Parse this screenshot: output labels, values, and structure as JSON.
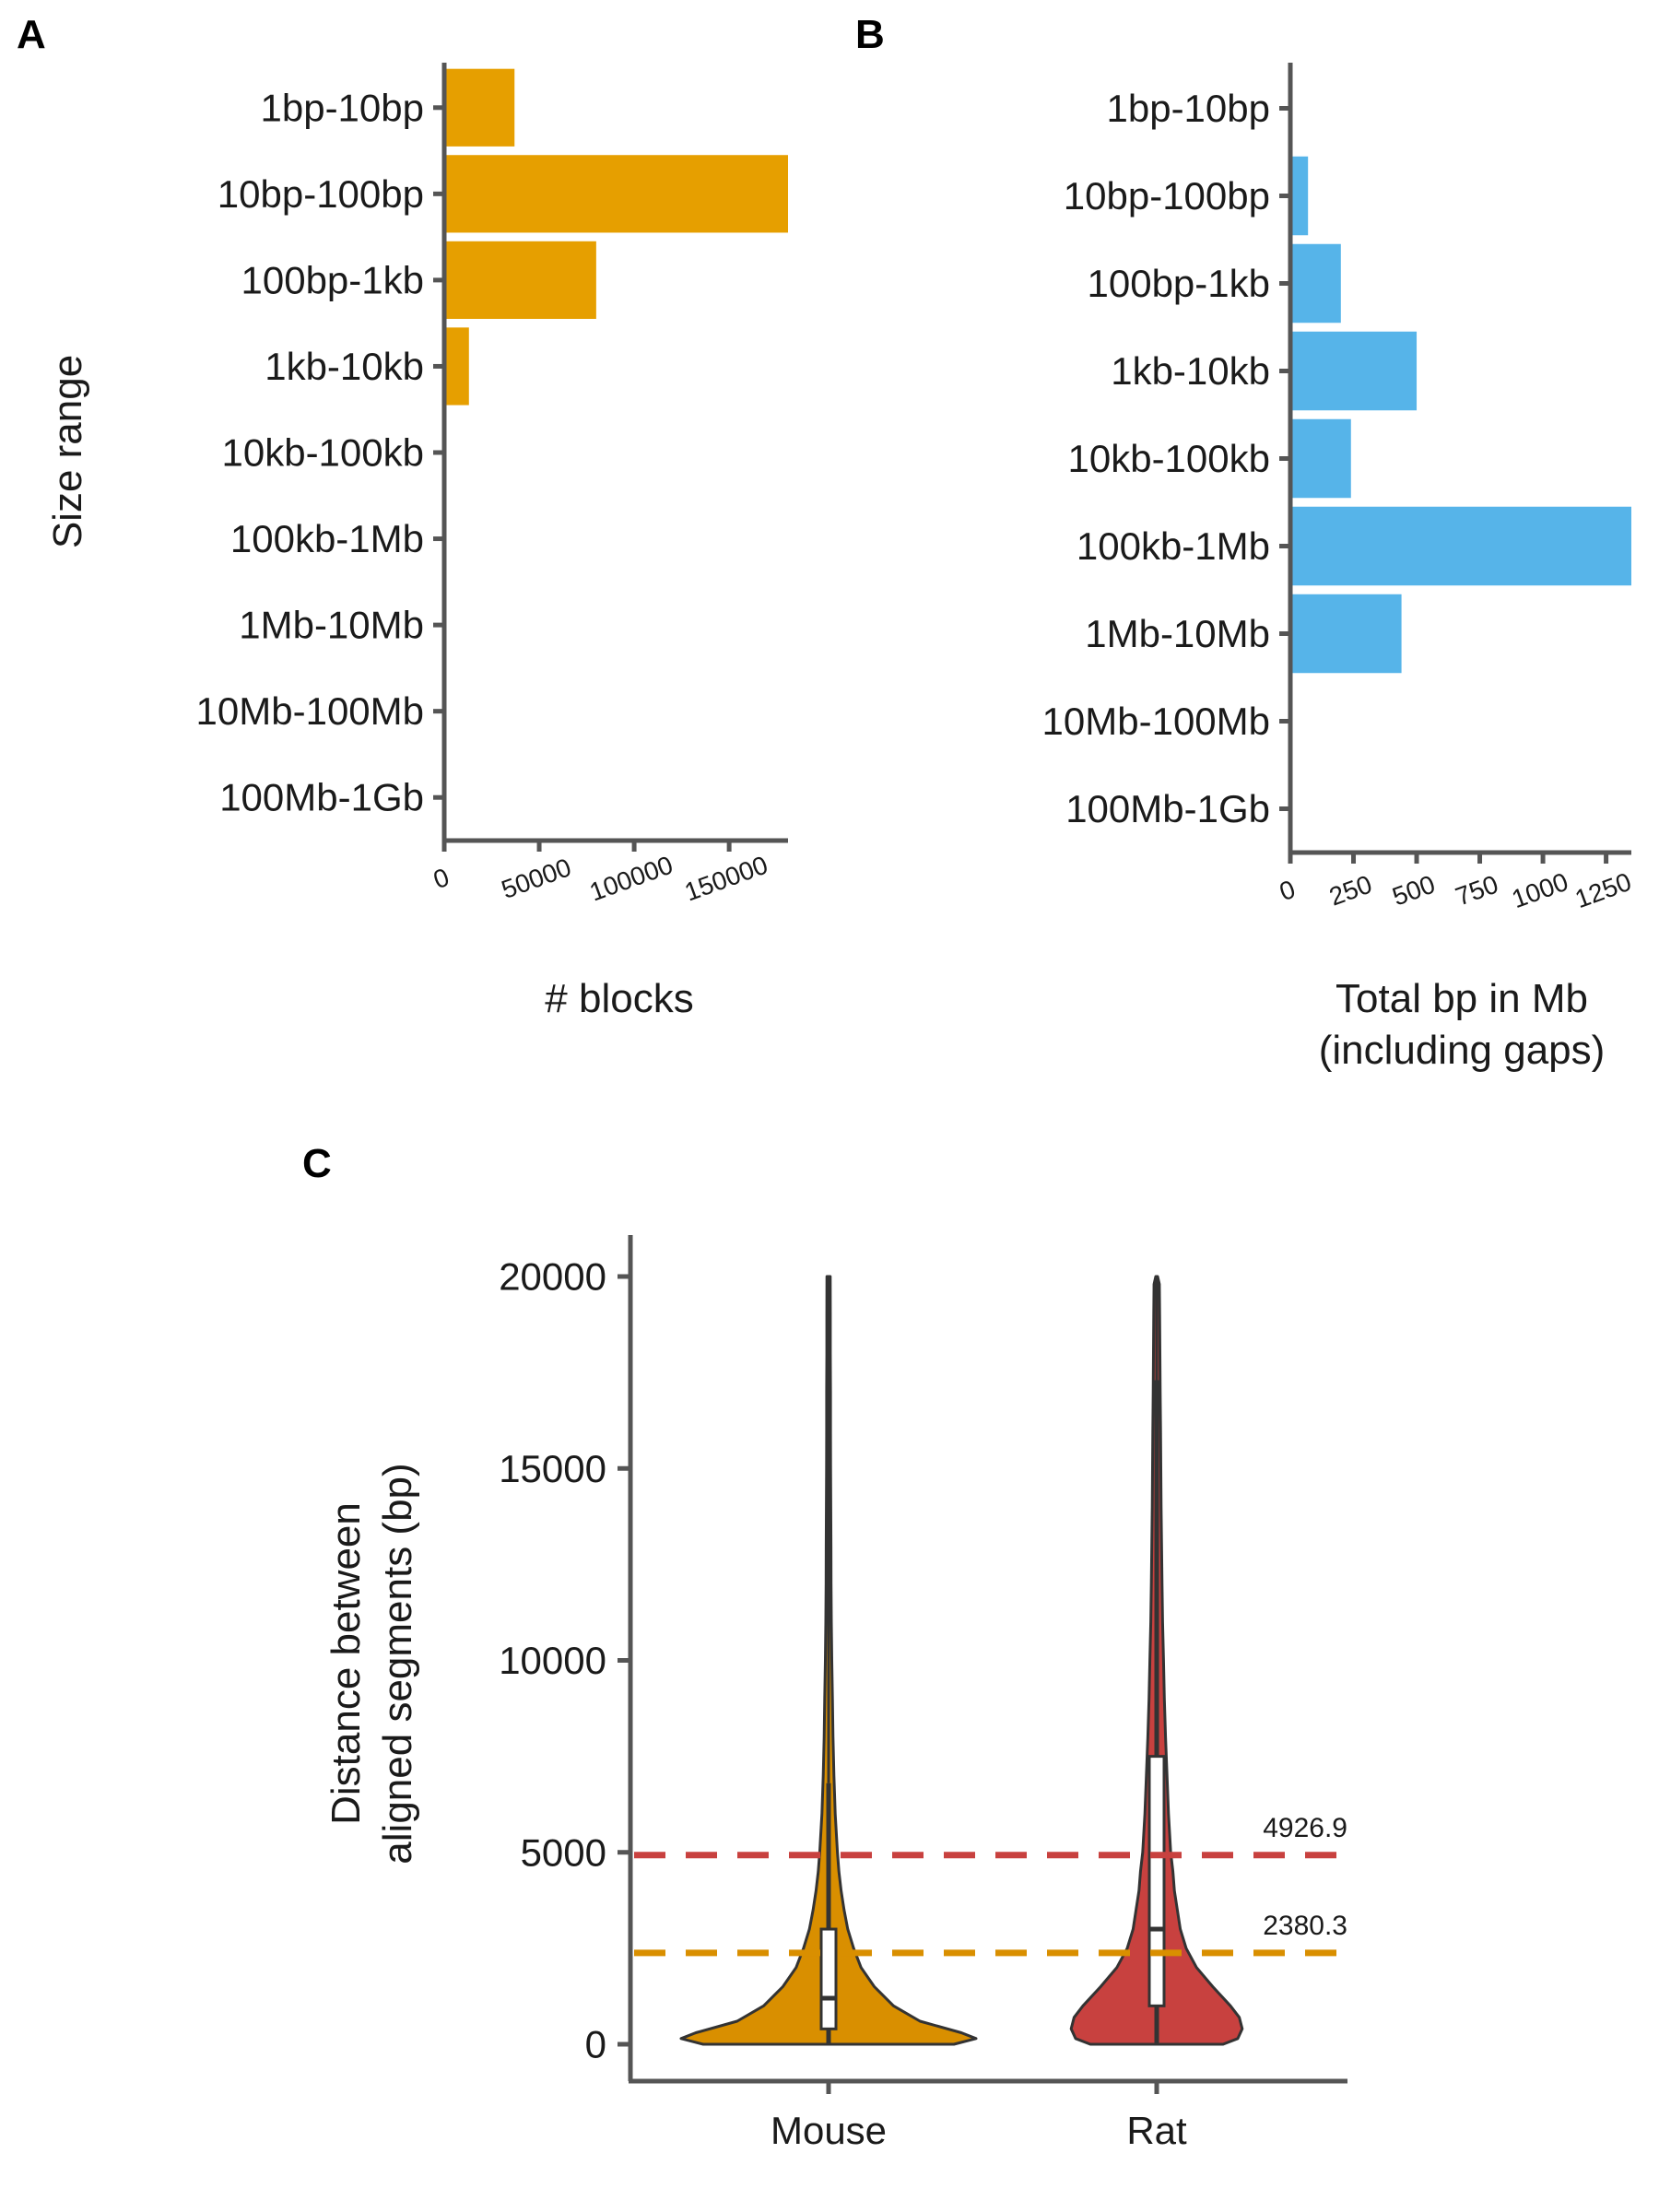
{
  "panels": {
    "A": {
      "letter": "A"
    },
    "B": {
      "letter": "B"
    },
    "C": {
      "letter": "C"
    }
  },
  "chart_data": [
    {
      "panel": "A",
      "type": "bar",
      "orientation": "horizontal",
      "categories": [
        "1bp-10bp",
        "10bp-100bp",
        "100bp-1kb",
        "1kb-10kb",
        "10kb-100kb",
        "100kb-1Mb",
        "1Mb-10Mb",
        "10Mb-100Mb",
        "100Mb-1Gb"
      ],
      "values": [
        37000,
        181000,
        80000,
        13000,
        0,
        0,
        0,
        0,
        0
      ],
      "color": "#E69F00",
      "xlabel": "# blocks",
      "ylabel": "Size range",
      "xlim": [
        0,
        181000
      ],
      "xticks": [
        0,
        50000,
        100000,
        150000
      ],
      "xtick_labels": [
        "0",
        "50000",
        "100000",
        "150000"
      ],
      "grid": false
    },
    {
      "panel": "B",
      "type": "bar",
      "orientation": "horizontal",
      "categories": [
        "1bp-10bp",
        "10bp-100bp",
        "100bp-1kb",
        "1kb-10kb",
        "10kb-100kb",
        "100kb-1Mb",
        "1Mb-10Mb",
        "10Mb-100Mb",
        "100Mb-1Gb"
      ],
      "values": [
        0,
        70,
        200,
        500,
        240,
        1350,
        440,
        0,
        0
      ],
      "color": "#56B4E9",
      "xlabel": "Total bp in Mb\n(including gaps)",
      "xlabel_lines": [
        "Total bp in Mb",
        "(including gaps)"
      ],
      "ylabel": "",
      "xlim": [
        0,
        1350
      ],
      "xticks": [
        0,
        250,
        500,
        750,
        1000,
        1250
      ],
      "xtick_labels": [
        "0",
        "250",
        "500",
        "750",
        "1000",
        "1250"
      ],
      "grid": false
    },
    {
      "panel": "C",
      "type": "violin",
      "categories": [
        "Mouse",
        "Rat"
      ],
      "ylabel": "Distance between\naligned segments (bp)",
      "ylabel_lines": [
        "Distance between",
        "aligned segments (bp)"
      ],
      "ylim": [
        0,
        20000
      ],
      "yticks": [
        0,
        5000,
        10000,
        15000,
        20000
      ],
      "ytick_labels": [
        "0",
        "5000",
        "10000",
        "15000",
        "20000"
      ],
      "series": [
        {
          "name": "Mouse",
          "color": "#D98F00",
          "min": 0,
          "max": 20000,
          "q1": 400,
          "median": 1200,
          "q3": 3000,
          "whisker_high": 6800,
          "mean": 2380.3,
          "density_y": [
            0,
            150,
            300,
            600,
            1000,
            1500,
            2000,
            2500,
            3000,
            3500,
            4000,
            4500,
            5000,
            6000,
            7000,
            8000,
            9000,
            10000,
            11000,
            12000,
            13000,
            14000,
            15000,
            16000,
            17000,
            18000,
            19000,
            20000
          ],
          "density_w": [
            0.85,
            1.0,
            0.9,
            0.62,
            0.44,
            0.31,
            0.22,
            0.17,
            0.13,
            0.105,
            0.085,
            0.07,
            0.06,
            0.045,
            0.036,
            0.03,
            0.026,
            0.022,
            0.019,
            0.017,
            0.016,
            0.015,
            0.014,
            0.013,
            0.013,
            0.012,
            0.012,
            0.011
          ]
        },
        {
          "name": "Rat",
          "color": "#C8413F",
          "min": 0,
          "max": 20000,
          "q1": 1000,
          "median": 3000,
          "q3": 7500,
          "whisker_high": 17300,
          "mean": 4926.9,
          "density_y": [
            0,
            150,
            400,
            700,
            1000,
            1500,
            2000,
            2500,
            3000,
            3500,
            4000,
            4500,
            5000,
            6000,
            7000,
            8000,
            9000,
            10000,
            11000,
            12000,
            13000,
            14000,
            15000,
            16000,
            17000,
            18000,
            19000,
            19800,
            20000
          ],
          "density_w": [
            0.45,
            0.55,
            0.58,
            0.56,
            0.5,
            0.38,
            0.27,
            0.2,
            0.16,
            0.14,
            0.12,
            0.11,
            0.095,
            0.08,
            0.07,
            0.06,
            0.052,
            0.046,
            0.04,
            0.036,
            0.033,
            0.03,
            0.028,
            0.026,
            0.024,
            0.022,
            0.02,
            0.018,
            0.006
          ]
        }
      ],
      "reference_lines": [
        {
          "value": 4926.9,
          "label": "4926.9",
          "color": "#C8413F"
        },
        {
          "value": 2380.3,
          "label": "2380.3",
          "color": "#D98F00"
        }
      ],
      "grid": false
    }
  ]
}
